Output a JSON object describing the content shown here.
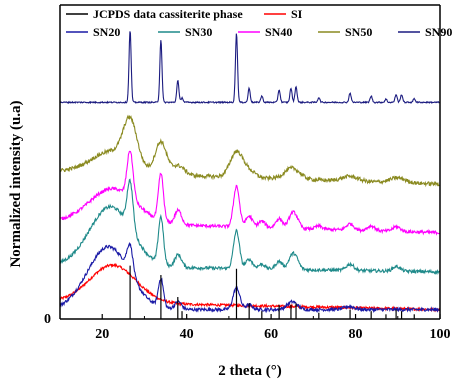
{
  "chart_data": {
    "type": "line",
    "xlabel": "2 theta (°)",
    "ylabel": "Normalized intensity (u.a)",
    "xlim": [
      10,
      100
    ],
    "x_ticks": [
      "20",
      "40",
      "60",
      "80",
      "100"
    ],
    "y_tick_zero": "0",
    "ylim": [
      0,
      10
    ],
    "grid": false,
    "legend_position": "top",
    "legend": [
      {
        "name": "JCPDS data cassiterite phase",
        "color": "#000000"
      },
      {
        "name": "SI",
        "color": "#ff0000"
      },
      {
        "name": "SN20",
        "color": "#1a1aa6"
      },
      {
        "name": "SN30",
        "color": "#1f8a8a"
      },
      {
        "name": "SN40",
        "color": "#ff00ff"
      },
      {
        "name": "SN50",
        "color": "#8a8a20"
      },
      {
        "name": "SN90",
        "color": "#1c1c80"
      }
    ],
    "reference_lines": {
      "name": "JCPDS data cassiterite phase",
      "color": "#000000",
      "positions": [
        26.6,
        33.9,
        37.9,
        38.9,
        51.8,
        54.8,
        57.8,
        61.9,
        64.7,
        65.9,
        71.3,
        78.7,
        83.7,
        87.2,
        89.6,
        90.9,
        93.9
      ],
      "heights": [
        1.7,
        1.4,
        0.7,
        0.25,
        1.6,
        0.5,
        0.25,
        0.45,
        0.45,
        0.5,
        0.2,
        0.3,
        0.25,
        0.15,
        0.3,
        0.25,
        0.15
      ]
    },
    "series": [
      {
        "name": "SI",
        "color": "#ff0000",
        "baseline": 0.55,
        "broad": [
          {
            "center": 22.5,
            "height": 1.2,
            "width": 5.5
          }
        ],
        "peaks": [],
        "noise": 0.04,
        "slope": -0.25
      },
      {
        "name": "SN20",
        "color": "#1a1aa6",
        "baseline": 0.3,
        "broad": [
          {
            "center": 21.5,
            "height": 2.0,
            "width": 5.0
          }
        ],
        "peaks": [
          {
            "center": 26.6,
            "height": 0.9,
            "width": 0.7
          },
          {
            "center": 33.9,
            "height": 0.9,
            "width": 0.6
          },
          {
            "center": 38.0,
            "height": 0.25,
            "width": 0.8
          },
          {
            "center": 51.8,
            "height": 0.7,
            "width": 0.8
          },
          {
            "center": 54.8,
            "height": 0.15,
            "width": 0.8
          },
          {
            "center": 65.0,
            "height": 0.25,
            "width": 1.2
          },
          {
            "center": 78.5,
            "height": 0.1,
            "width": 1.2
          }
        ],
        "noise": 0.05,
        "slope": 0.0
      },
      {
        "name": "SN30",
        "color": "#1f8a8a",
        "baseline": 1.7,
        "broad": [
          {
            "center": 22.0,
            "height": 1.9,
            "width": 5.0
          }
        ],
        "peaks": [
          {
            "center": 26.6,
            "height": 1.5,
            "width": 0.7
          },
          {
            "center": 33.9,
            "height": 1.5,
            "width": 0.6
          },
          {
            "center": 38.0,
            "height": 0.4,
            "width": 0.8
          },
          {
            "center": 51.8,
            "height": 1.2,
            "width": 0.7
          },
          {
            "center": 54.8,
            "height": 0.3,
            "width": 0.8
          },
          {
            "center": 57.8,
            "height": 0.15,
            "width": 0.8
          },
          {
            "center": 61.9,
            "height": 0.25,
            "width": 0.8
          },
          {
            "center": 64.8,
            "height": 0.35,
            "width": 0.8
          },
          {
            "center": 65.9,
            "height": 0.3,
            "width": 0.8
          },
          {
            "center": 78.7,
            "height": 0.2,
            "width": 0.9
          },
          {
            "center": 89.7,
            "height": 0.15,
            "width": 0.9
          }
        ],
        "noise": 0.05,
        "slope": -0.2
      },
      {
        "name": "SN40",
        "color": "#ff00ff",
        "baseline": 3.1,
        "broad": [
          {
            "center": 22.5,
            "height": 1.1,
            "width": 5.5
          }
        ],
        "peaks": [
          {
            "center": 26.6,
            "height": 1.5,
            "width": 0.7
          },
          {
            "center": 33.9,
            "height": 1.5,
            "width": 0.6
          },
          {
            "center": 38.0,
            "height": 0.45,
            "width": 0.8
          },
          {
            "center": 51.8,
            "height": 1.3,
            "width": 0.7
          },
          {
            "center": 54.8,
            "height": 0.35,
            "width": 0.8
          },
          {
            "center": 57.8,
            "height": 0.2,
            "width": 0.8
          },
          {
            "center": 61.9,
            "height": 0.3,
            "width": 0.8
          },
          {
            "center": 64.8,
            "height": 0.35,
            "width": 0.8
          },
          {
            "center": 65.9,
            "height": 0.3,
            "width": 0.8
          },
          {
            "center": 71.3,
            "height": 0.1,
            "width": 0.8
          },
          {
            "center": 78.7,
            "height": 0.2,
            "width": 0.9
          },
          {
            "center": 83.7,
            "height": 0.15,
            "width": 0.9
          },
          {
            "center": 89.7,
            "height": 0.15,
            "width": 0.9
          }
        ],
        "noise": 0.05,
        "slope": -0.35
      },
      {
        "name": "SN50",
        "color": "#8a8a20",
        "baseline": 4.7,
        "broad": [
          {
            "center": 22.5,
            "height": 0.7,
            "width": 5.0
          }
        ],
        "peaks": [
          {
            "center": 26.6,
            "height": 1.3,
            "width": 1.6
          },
          {
            "center": 33.9,
            "height": 1.0,
            "width": 1.3
          },
          {
            "center": 38.0,
            "height": 0.3,
            "width": 1.5
          },
          {
            "center": 51.8,
            "height": 0.8,
            "width": 1.5
          },
          {
            "center": 54.8,
            "height": 0.2,
            "width": 1.5
          },
          {
            "center": 65.0,
            "height": 0.35,
            "width": 1.8
          },
          {
            "center": 78.7,
            "height": 0.15,
            "width": 1.8
          },
          {
            "center": 90.0,
            "height": 0.15,
            "width": 1.8
          }
        ],
        "noise": 0.06,
        "slope": -0.4
      },
      {
        "name": "SN90",
        "color": "#1c1c80",
        "baseline": 6.9,
        "broad": [],
        "peaks": [
          {
            "center": 26.6,
            "height": 2.3,
            "width": 0.25
          },
          {
            "center": 33.9,
            "height": 2.0,
            "width": 0.25
          },
          {
            "center": 37.9,
            "height": 0.7,
            "width": 0.25
          },
          {
            "center": 38.9,
            "height": 0.15,
            "width": 0.25
          },
          {
            "center": 51.8,
            "height": 2.2,
            "width": 0.25
          },
          {
            "center": 54.8,
            "height": 0.45,
            "width": 0.25
          },
          {
            "center": 57.8,
            "height": 0.2,
            "width": 0.25
          },
          {
            "center": 61.9,
            "height": 0.4,
            "width": 0.25
          },
          {
            "center": 64.7,
            "height": 0.45,
            "width": 0.25
          },
          {
            "center": 65.9,
            "height": 0.5,
            "width": 0.25
          },
          {
            "center": 71.3,
            "height": 0.15,
            "width": 0.25
          },
          {
            "center": 78.7,
            "height": 0.3,
            "width": 0.25
          },
          {
            "center": 83.7,
            "height": 0.2,
            "width": 0.25
          },
          {
            "center": 87.2,
            "height": 0.1,
            "width": 0.25
          },
          {
            "center": 89.6,
            "height": 0.25,
            "width": 0.25
          },
          {
            "center": 90.9,
            "height": 0.25,
            "width": 0.25
          },
          {
            "center": 93.9,
            "height": 0.12,
            "width": 0.25
          }
        ],
        "noise": 0.02,
        "slope": 0.0
      }
    ]
  }
}
